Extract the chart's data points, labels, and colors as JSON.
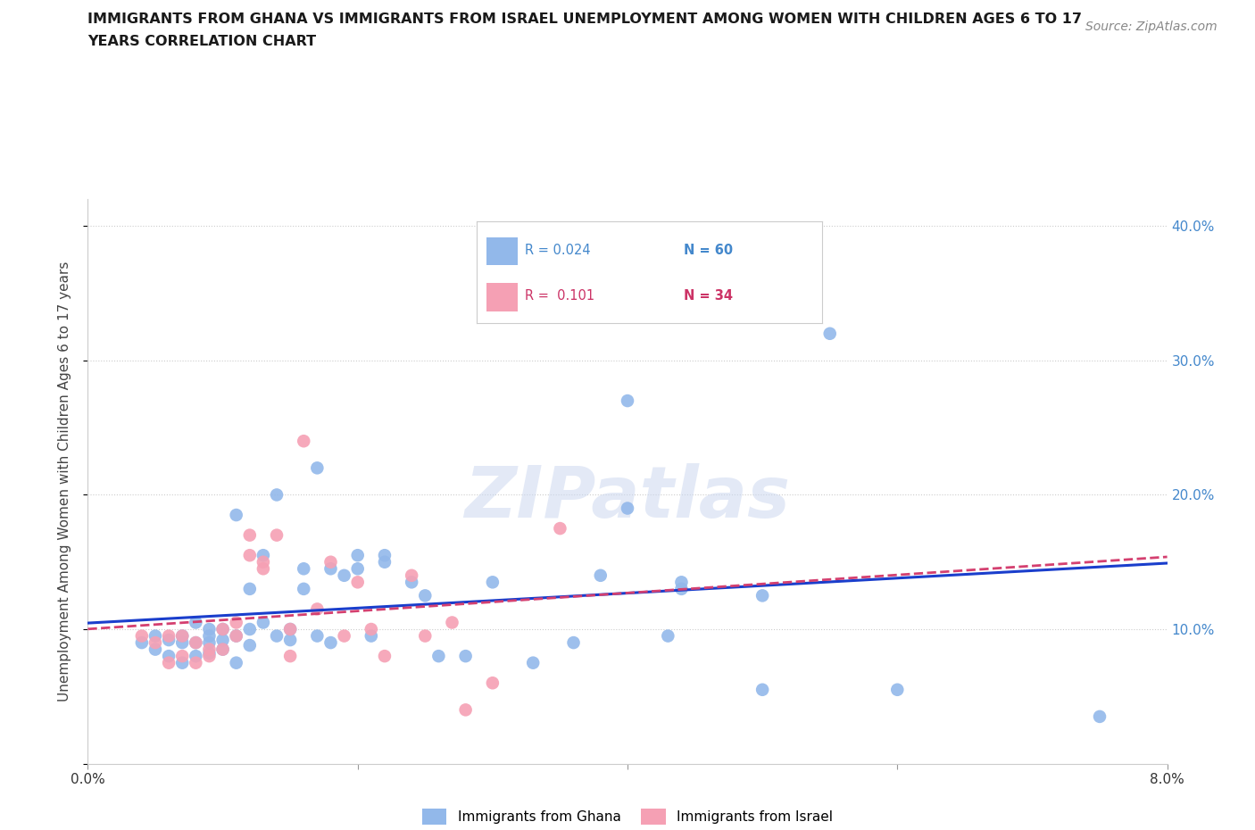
{
  "title_line1": "IMMIGRANTS FROM GHANA VS IMMIGRANTS FROM ISRAEL UNEMPLOYMENT AMONG WOMEN WITH CHILDREN AGES 6 TO 17",
  "title_line2": "YEARS CORRELATION CHART",
  "source": "Source: ZipAtlas.com",
  "ylabel": "Unemployment Among Women with Children Ages 6 to 17 years",
  "xlim": [
    0.0,
    0.08
  ],
  "ylim": [
    0.0,
    0.42
  ],
  "yticks": [
    0.0,
    0.1,
    0.2,
    0.3,
    0.4
  ],
  "ytick_labels": [
    "",
    "10.0%",
    "20.0%",
    "30.0%",
    "40.0%"
  ],
  "xtick_positions": [
    0.0,
    0.02,
    0.04,
    0.06,
    0.08
  ],
  "xtick_labels": [
    "0.0%",
    "",
    "",
    "",
    "8.0%"
  ],
  "color_ghana": "#92b8ea",
  "color_israel": "#f5a0b4",
  "color_ghana_line": "#1a3ecc",
  "color_israel_line": "#d44070",
  "color_right_axis": "#4488cc",
  "color_title": "#1a1a1a",
  "color_source": "#888888",
  "watermark": "ZIPatlas",
  "ghana_x": [
    0.004,
    0.005,
    0.005,
    0.006,
    0.006,
    0.007,
    0.007,
    0.007,
    0.008,
    0.008,
    0.008,
    0.009,
    0.009,
    0.009,
    0.009,
    0.01,
    0.01,
    0.01,
    0.011,
    0.011,
    0.011,
    0.012,
    0.012,
    0.012,
    0.013,
    0.013,
    0.014,
    0.014,
    0.015,
    0.015,
    0.016,
    0.016,
    0.017,
    0.017,
    0.018,
    0.018,
    0.019,
    0.02,
    0.02,
    0.021,
    0.022,
    0.022,
    0.024,
    0.025,
    0.026,
    0.028,
    0.03,
    0.033,
    0.036,
    0.038,
    0.04,
    0.04,
    0.043,
    0.044,
    0.044,
    0.05,
    0.05,
    0.055,
    0.06,
    0.075
  ],
  "ghana_y": [
    0.09,
    0.095,
    0.085,
    0.092,
    0.08,
    0.095,
    0.09,
    0.075,
    0.105,
    0.09,
    0.08,
    0.095,
    0.1,
    0.09,
    0.082,
    0.1,
    0.092,
    0.085,
    0.185,
    0.095,
    0.075,
    0.13,
    0.1,
    0.088,
    0.155,
    0.105,
    0.2,
    0.095,
    0.1,
    0.092,
    0.145,
    0.13,
    0.22,
    0.095,
    0.145,
    0.09,
    0.14,
    0.155,
    0.145,
    0.095,
    0.155,
    0.15,
    0.135,
    0.125,
    0.08,
    0.08,
    0.135,
    0.075,
    0.09,
    0.14,
    0.19,
    0.27,
    0.095,
    0.135,
    0.13,
    0.125,
    0.055,
    0.32,
    0.055,
    0.035
  ],
  "israel_x": [
    0.004,
    0.005,
    0.006,
    0.006,
    0.007,
    0.007,
    0.008,
    0.008,
    0.009,
    0.009,
    0.01,
    0.01,
    0.011,
    0.011,
    0.012,
    0.012,
    0.013,
    0.013,
    0.014,
    0.015,
    0.015,
    0.016,
    0.017,
    0.018,
    0.019,
    0.02,
    0.021,
    0.022,
    0.024,
    0.025,
    0.027,
    0.028,
    0.03,
    0.035
  ],
  "israel_y": [
    0.095,
    0.09,
    0.095,
    0.075,
    0.08,
    0.095,
    0.09,
    0.075,
    0.085,
    0.08,
    0.085,
    0.1,
    0.095,
    0.105,
    0.17,
    0.155,
    0.145,
    0.15,
    0.17,
    0.08,
    0.1,
    0.24,
    0.115,
    0.15,
    0.095,
    0.135,
    0.1,
    0.08,
    0.14,
    0.095,
    0.105,
    0.04,
    0.06,
    0.175
  ],
  "legend_ghana_r": "R = 0.024",
  "legend_ghana_n": "N = 60",
  "legend_israel_r": "R =  0.101",
  "legend_israel_n": "N = 34"
}
